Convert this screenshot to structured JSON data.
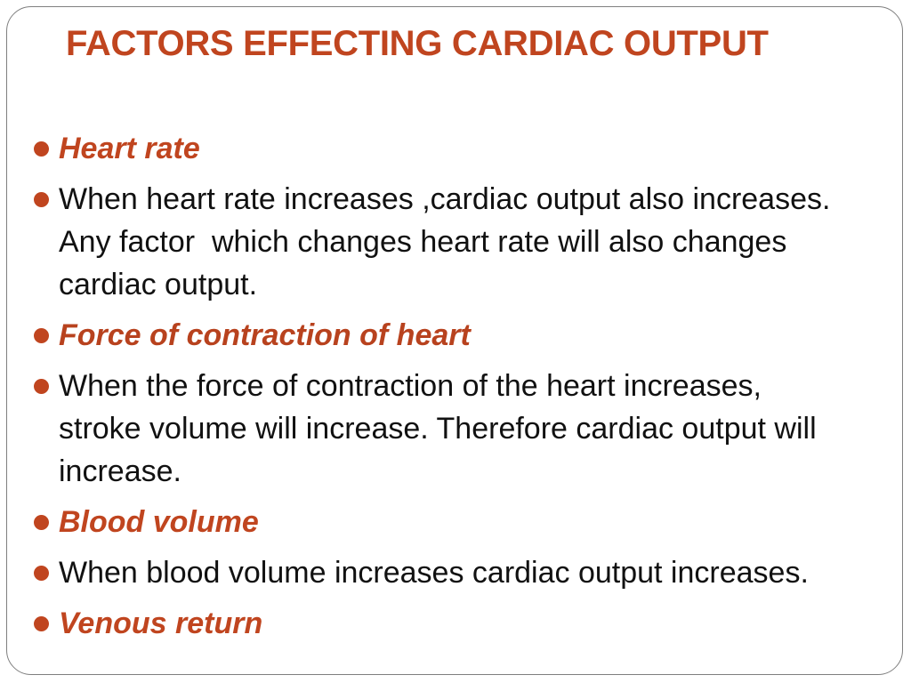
{
  "title": "FACTORS EFFECTING CARDIAC OUTPUT",
  "colors": {
    "accent": "#c0451f",
    "text": "#111111",
    "border": "#7f7f7f"
  },
  "bullets": [
    {
      "kind": "heading",
      "text": "Heart rate"
    },
    {
      "kind": "body",
      "text": "When heart rate increases ,cardiac output also increases. Any factor  which changes heart rate will also changes cardiac output."
    },
    {
      "kind": "heading",
      "text": "Force of contraction of heart"
    },
    {
      "kind": "body",
      "text": "When the force of contraction of the heart increases, stroke volume will increase. Therefore cardiac output will increase."
    },
    {
      "kind": "heading",
      "text": "Blood volume"
    },
    {
      "kind": "body",
      "text": "When blood volume increases cardiac output increases."
    },
    {
      "kind": "heading",
      "text": "Venous return"
    }
  ]
}
